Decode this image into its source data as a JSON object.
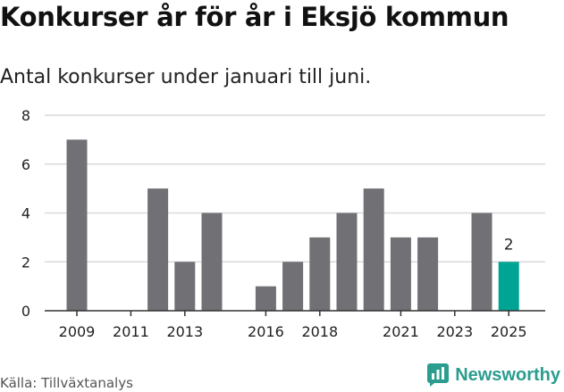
{
  "header": {
    "title": "Konkurser år för år i Eksjö kommun",
    "subtitle": "Antal konkurser under januari till juni."
  },
  "footer": {
    "source": "Källa: Tillväxtanalys",
    "brand": "Newsworthy",
    "brand_icon": "newsworthy-logo-icon"
  },
  "colors": {
    "bar": "#717075",
    "highlight": "#00a495",
    "grid": "#d9d9d9",
    "brand": "#2a9d8f"
  },
  "chart_data": {
    "type": "bar",
    "title": "Konkurser år för år i Eksjö kommun",
    "subtitle": "Antal konkurser under januari till juni.",
    "xlabel": "",
    "ylabel": "",
    "ylim": [
      0,
      8
    ],
    "yticks": [
      0,
      2,
      4,
      6,
      8
    ],
    "grid": true,
    "categories": [
      "2009",
      "2010",
      "2011",
      "2012",
      "2013",
      "2014",
      "2015",
      "2016",
      "2017",
      "2018",
      "2019",
      "2020",
      "2021",
      "2022",
      "2023",
      "2024",
      "2025"
    ],
    "values": [
      7,
      0,
      0,
      5,
      2,
      4,
      0,
      1,
      2,
      3,
      4,
      5,
      3,
      3,
      0,
      4,
      2
    ],
    "x_tick_labels": [
      "2009",
      "2011",
      "2013",
      "2016",
      "2018",
      "2021",
      "2023",
      "2025"
    ],
    "highlight": {
      "category": "2025",
      "label": "2"
    }
  }
}
